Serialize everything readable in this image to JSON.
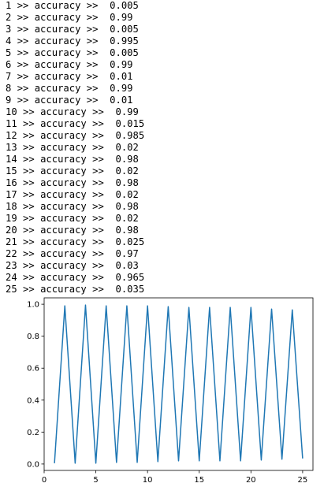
{
  "output": {
    "sep": ">>",
    "metric_label": "accuracy",
    "rows": [
      {
        "epoch": "1",
        "value": "0.005"
      },
      {
        "epoch": "2",
        "value": "0.99"
      },
      {
        "epoch": "3",
        "value": "0.005"
      },
      {
        "epoch": "4",
        "value": "0.995"
      },
      {
        "epoch": "5",
        "value": "0.005"
      },
      {
        "epoch": "6",
        "value": "0.99"
      },
      {
        "epoch": "7",
        "value": "0.01"
      },
      {
        "epoch": "8",
        "value": "0.99"
      },
      {
        "epoch": "9",
        "value": "0.01"
      },
      {
        "epoch": "10",
        "value": "0.99"
      },
      {
        "epoch": "11",
        "value": "0.015"
      },
      {
        "epoch": "12",
        "value": "0.985"
      },
      {
        "epoch": "13",
        "value": "0.02"
      },
      {
        "epoch": "14",
        "value": "0.98"
      },
      {
        "epoch": "15",
        "value": "0.02"
      },
      {
        "epoch": "16",
        "value": "0.98"
      },
      {
        "epoch": "17",
        "value": "0.02"
      },
      {
        "epoch": "18",
        "value": "0.98"
      },
      {
        "epoch": "19",
        "value": "0.02"
      },
      {
        "epoch": "20",
        "value": "0.98"
      },
      {
        "epoch": "21",
        "value": "0.025"
      },
      {
        "epoch": "22",
        "value": "0.97"
      },
      {
        "epoch": "23",
        "value": "0.03"
      },
      {
        "epoch": "24",
        "value": "0.965"
      },
      {
        "epoch": "25",
        "value": "0.035"
      }
    ]
  },
  "chart_data": {
    "type": "line",
    "title": "",
    "xlabel": "",
    "ylabel": "",
    "x": [
      1,
      2,
      3,
      4,
      5,
      6,
      7,
      8,
      9,
      10,
      11,
      12,
      13,
      14,
      15,
      16,
      17,
      18,
      19,
      20,
      21,
      22,
      23,
      24,
      25
    ],
    "series": [
      {
        "values": [
          0.005,
          0.99,
          0.005,
          0.995,
          0.005,
          0.99,
          0.01,
          0.99,
          0.01,
          0.99,
          0.015,
          0.985,
          0.02,
          0.98,
          0.02,
          0.98,
          0.02,
          0.98,
          0.02,
          0.98,
          0.025,
          0.97,
          0.03,
          0.965,
          0.035
        ]
      }
    ],
    "xlim": [
      0,
      26
    ],
    "ylim": [
      -0.04,
      1.04
    ],
    "xticks": [
      0,
      5,
      10,
      15,
      20,
      25
    ],
    "yticks": [
      0.0,
      0.2,
      0.4,
      0.6,
      0.8,
      1.0
    ],
    "ytick_labels": [
      "0.0",
      "0.2",
      "0.4",
      "0.6",
      "0.8",
      "1.0"
    ],
    "grid": false,
    "line_color": "#1f77b4"
  }
}
